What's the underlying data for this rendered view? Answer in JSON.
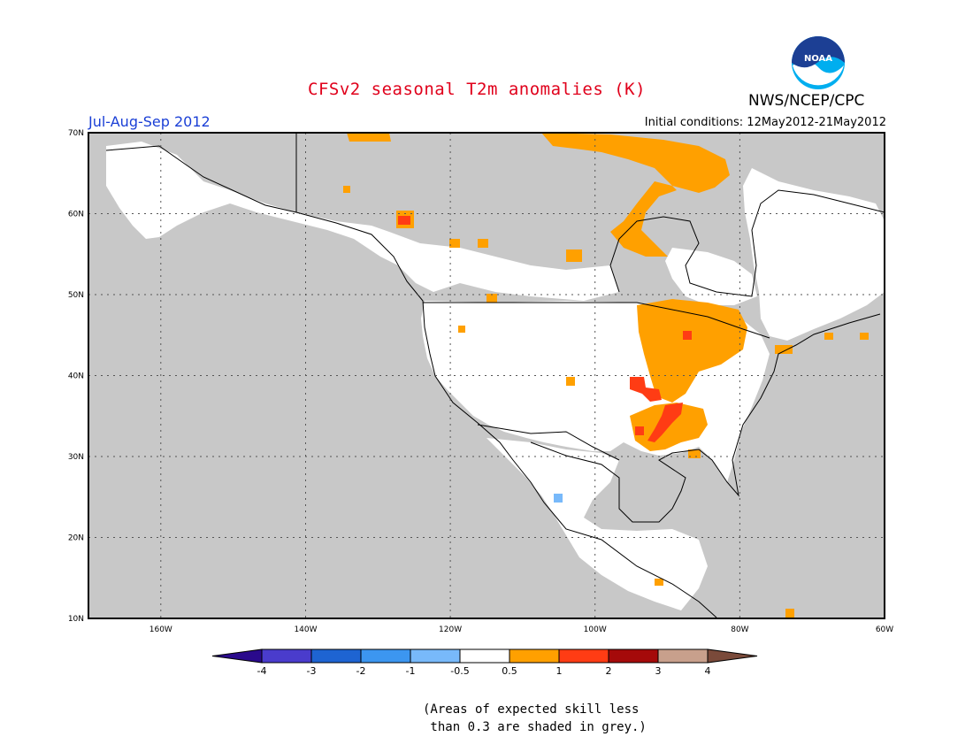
{
  "header": {
    "title": "CFSv2 seasonal T2m anomalies (K)",
    "agency": "NWS/NCEP/CPC",
    "logo_text": "NOAA",
    "period": "Jul-Aug-Sep 2012",
    "initial_conditions": "Initial conditions: 12May2012-21May2012"
  },
  "map": {
    "projection": "cylindrical equidistant",
    "lon_range": [
      -170,
      -60
    ],
    "lat_range": [
      10,
      70
    ],
    "lat_labels": [
      "70N",
      "60N",
      "50N",
      "40N",
      "30N",
      "20N",
      "10N"
    ],
    "lon_labels": [
      "160W",
      "140W",
      "120W",
      "100W",
      "80W",
      "60W"
    ],
    "gridlines": "dotted",
    "skill_mask_color": "#c8c8c8"
  },
  "colorbar": {
    "labels": [
      "-4",
      "-3",
      "-2",
      "-1",
      "-0.5",
      "0.5",
      "1",
      "2",
      "3",
      "4"
    ],
    "colors": [
      "#2a0a8c",
      "#4a3ccc",
      "#1e64d2",
      "#3c96f0",
      "#78b9fa",
      "#ffffff",
      "#ffa000",
      "#ff3c14",
      "#a50a0a",
      "#c8a08c",
      "#7a4a3a"
    ]
  },
  "footnote": [
    "(Areas of expected skill less",
    " than 0.3 are shaded in grey.)"
  ]
}
